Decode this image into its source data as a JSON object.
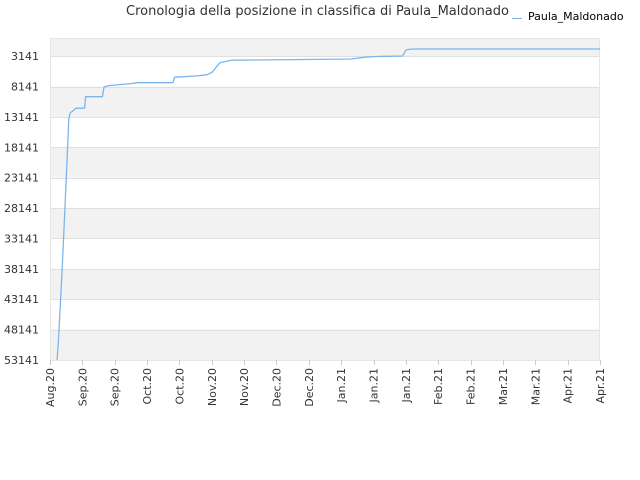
{
  "chart_data": {
    "type": "line",
    "title": "Cronologia della posizione in classifica di Paula_Maldonado",
    "xlabel": "",
    "ylabel": "",
    "y_reversed": true,
    "ylim": [
      53141,
      141
    ],
    "y_ticks": [
      3141,
      8141,
      13141,
      18141,
      23141,
      28141,
      33141,
      38141,
      43141,
      48141,
      53141
    ],
    "x_ticks": [
      "Aug.20",
      "Sep.20",
      "Sep.20",
      "Oct.20",
      "Oct.20",
      "Nov.20",
      "Nov.20",
      "Dec.20",
      "Dec.20",
      "Jan.21",
      "Jan.21",
      "Jan.21",
      "Feb.21",
      "Feb.21",
      "Mar.21",
      "Mar.21",
      "Apr.21",
      "Apr.21"
    ],
    "x_index_range": [
      0,
      17
    ],
    "grid": true,
    "alternating_bands": true,
    "legend": "top-right",
    "series": [
      {
        "name": "Paula_Maldonado",
        "color": "#7cb5ec",
        "points": [
          {
            "x": 0.22,
            "y": 53141
          },
          {
            "x": 0.26,
            "y": 50000
          },
          {
            "x": 0.3,
            "y": 46000
          },
          {
            "x": 0.36,
            "y": 40000
          },
          {
            "x": 0.42,
            "y": 33000
          },
          {
            "x": 0.48,
            "y": 26000
          },
          {
            "x": 0.54,
            "y": 18500
          },
          {
            "x": 0.58,
            "y": 13500
          },
          {
            "x": 0.62,
            "y": 12500
          },
          {
            "x": 0.8,
            "y": 11700
          },
          {
            "x": 1.07,
            "y": 11700
          },
          {
            "x": 1.1,
            "y": 9800
          },
          {
            "x": 1.62,
            "y": 9800
          },
          {
            "x": 1.67,
            "y": 8200
          },
          {
            "x": 1.8,
            "y": 8000
          },
          {
            "x": 2.0,
            "y": 7900
          },
          {
            "x": 2.2,
            "y": 7800
          },
          {
            "x": 2.5,
            "y": 7650
          },
          {
            "x": 2.7,
            "y": 7500
          },
          {
            "x": 3.8,
            "y": 7500
          },
          {
            "x": 3.85,
            "y": 6600
          },
          {
            "x": 4.5,
            "y": 6400
          },
          {
            "x": 4.85,
            "y": 6200
          },
          {
            "x": 5.0,
            "y": 5800
          },
          {
            "x": 5.1,
            "y": 5200
          },
          {
            "x": 5.25,
            "y": 4200
          },
          {
            "x": 5.6,
            "y": 3800
          },
          {
            "x": 7.5,
            "y": 3700
          },
          {
            "x": 9.3,
            "y": 3600
          },
          {
            "x": 9.75,
            "y": 3300
          },
          {
            "x": 10.0,
            "y": 3200
          },
          {
            "x": 10.5,
            "y": 3150
          },
          {
            "x": 10.9,
            "y": 3100
          },
          {
            "x": 11.0,
            "y": 2100
          },
          {
            "x": 11.2,
            "y": 1950
          },
          {
            "x": 17.0,
            "y": 1950
          }
        ]
      }
    ]
  }
}
